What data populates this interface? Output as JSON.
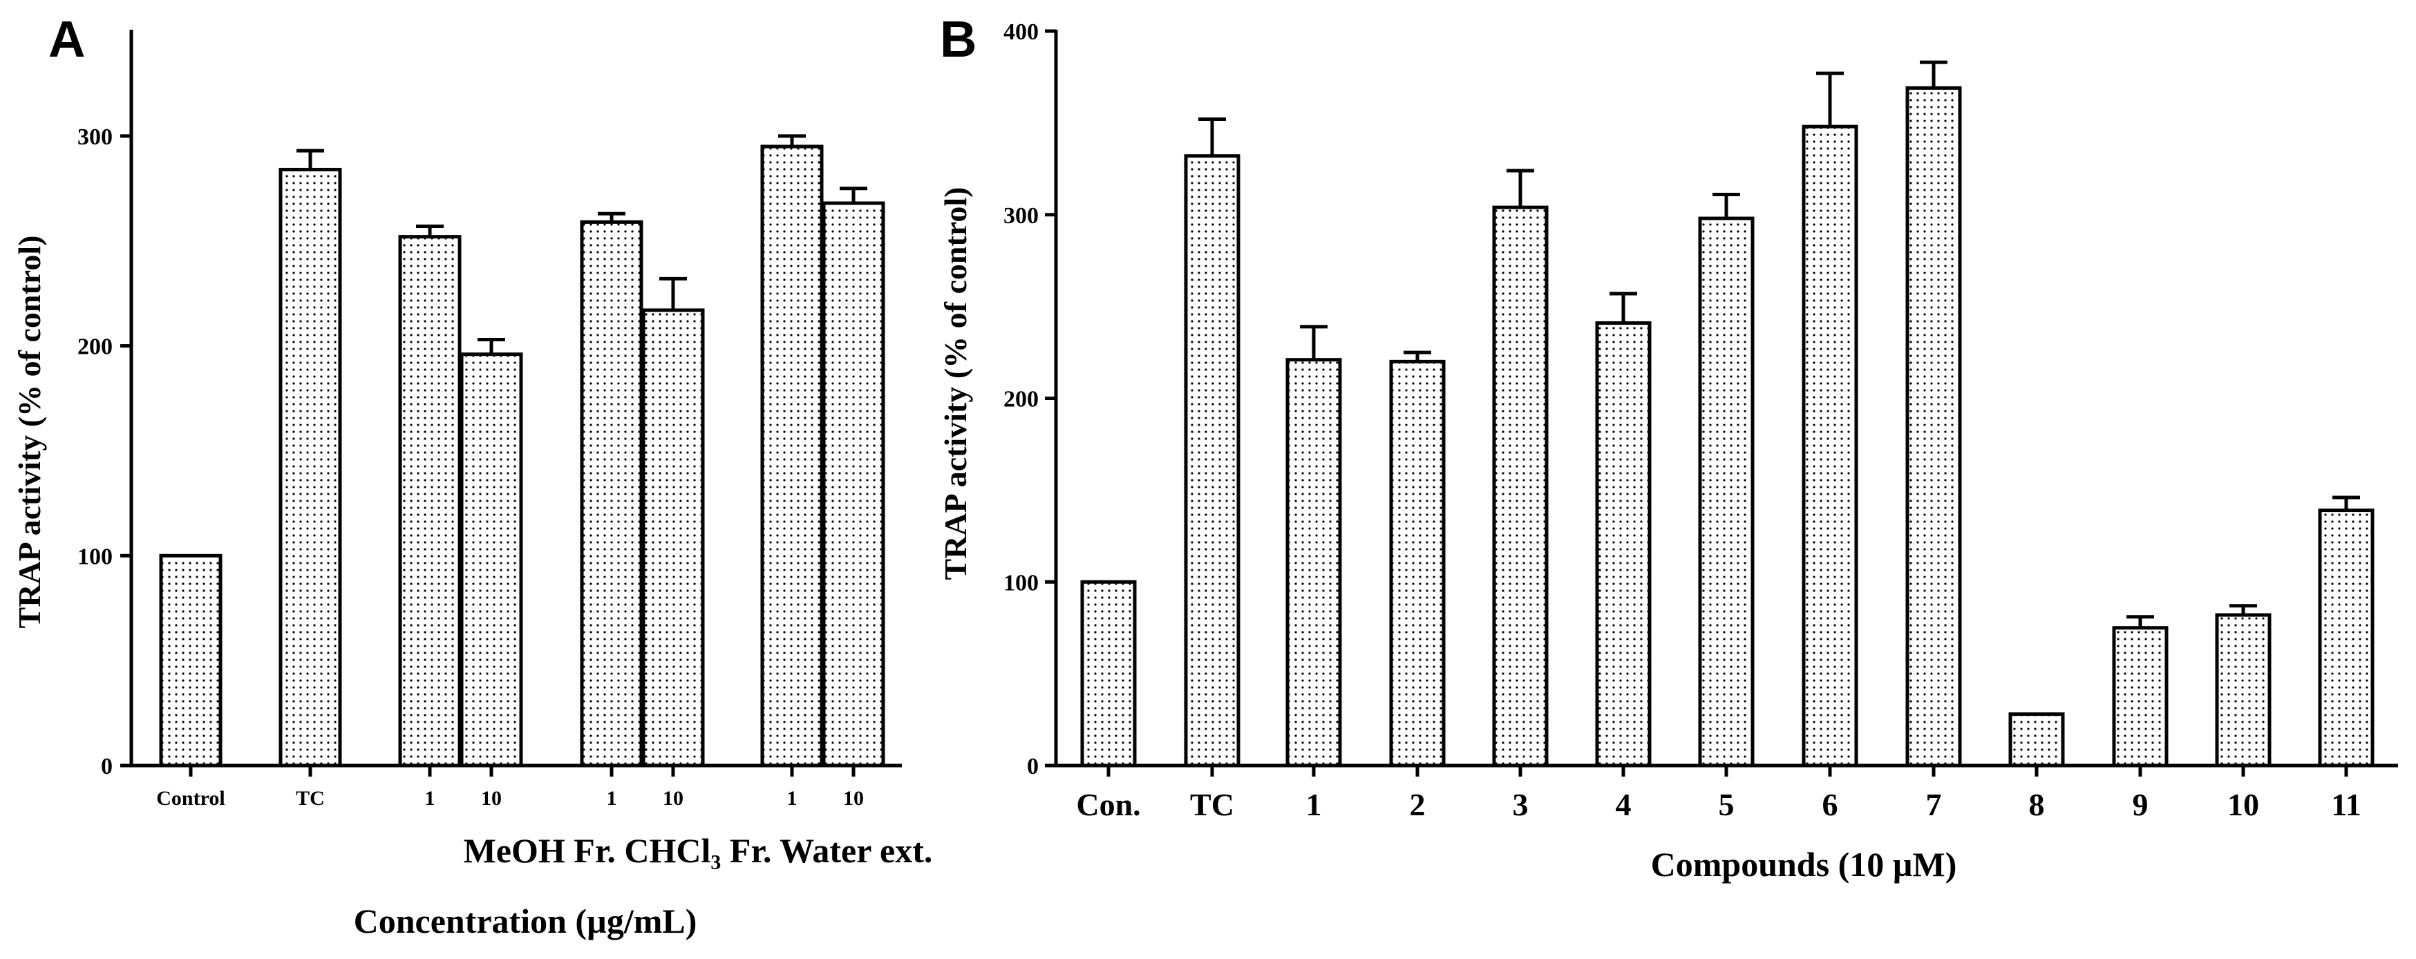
{
  "chart_data": [
    {
      "type": "bar",
      "panel_label": "A",
      "ylabel": "TRAP activity (% of control)",
      "ylim": [
        0,
        350
      ],
      "yticks": [
        0,
        100,
        200,
        300
      ],
      "groups_label": "MeOH Fr. CHCl₃ Fr. Water ext.",
      "group_names": [
        "MeOH Fr.",
        "CHCl₃ Fr.",
        "Water ext."
      ],
      "xlabel": "Concentration (µg/mL)",
      "categories": [
        "Control",
        "TC",
        "1",
        "10",
        "1",
        "10",
        "1",
        "10"
      ],
      "values": [
        100,
        284,
        252,
        196,
        259,
        217,
        295,
        268
      ],
      "errors": [
        0,
        9,
        5,
        7,
        4,
        15,
        5,
        7
      ]
    },
    {
      "type": "bar",
      "panel_label": "B",
      "ylabel": "TRAP activity (% of control)",
      "ylim": [
        0,
        400
      ],
      "yticks": [
        0,
        100,
        200,
        300,
        400
      ],
      "xlabel": "Compounds (10 µM)",
      "categories": [
        "Con.",
        "TC",
        "1",
        "2",
        "3",
        "4",
        "5",
        "6",
        "7",
        "8",
        "9",
        "10",
        "11"
      ],
      "values": [
        100,
        332,
        221,
        220,
        304,
        241,
        298,
        348,
        369,
        28,
        75,
        82,
        139
      ],
      "errors": [
        0,
        20,
        18,
        5,
        20,
        16,
        13,
        29,
        14,
        0,
        6,
        5,
        7
      ]
    }
  ]
}
